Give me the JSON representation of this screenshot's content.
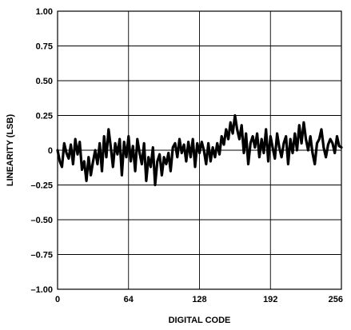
{
  "chart_data": {
    "type": "line",
    "title": "",
    "xlabel": "DIGITAL CODE",
    "ylabel": "LINEARITY (LSB)",
    "xlim": [
      0,
      256
    ],
    "ylim": [
      -1.0,
      1.0
    ],
    "x_ticks": [
      0,
      64,
      128,
      192,
      256
    ],
    "x_tick_labels": [
      "0",
      "64",
      "128",
      "192",
      "256"
    ],
    "y_ticks": [
      1.0,
      0.75,
      0.5,
      0.25,
      0,
      -0.25,
      -0.5,
      -0.75,
      -1.0
    ],
    "y_tick_labels": [
      "1.00",
      "0.75",
      "0.50",
      "0.25",
      "0",
      "–0.25",
      "–0.50",
      "–0.75",
      "–1.00"
    ],
    "grid": true,
    "line_color": "#000000",
    "series": [
      {
        "x": [
          0,
          2,
          4,
          6,
          8,
          10,
          12,
          14,
          16,
          18,
          20,
          22,
          24,
          26,
          28,
          30,
          32,
          34,
          36,
          38,
          40,
          42,
          44,
          46,
          48,
          50,
          52,
          54,
          56,
          58,
          60,
          62,
          64,
          66,
          68,
          70,
          72,
          74,
          76,
          78,
          80,
          82,
          84,
          86,
          88,
          90,
          92,
          94,
          96,
          98,
          100,
          102,
          104,
          106,
          108,
          110,
          112,
          114,
          116,
          118,
          120,
          122,
          124,
          126,
          128,
          130,
          132,
          134,
          136,
          138,
          140,
          142,
          144,
          146,
          148,
          150,
          152,
          154,
          156,
          158,
          160,
          162,
          164,
          166,
          168,
          170,
          172,
          174,
          176,
          178,
          180,
          182,
          184,
          186,
          188,
          190,
          192,
          194,
          196,
          198,
          200,
          202,
          204,
          206,
          208,
          210,
          212,
          214,
          216,
          218,
          220,
          222,
          224,
          226,
          228,
          230,
          232,
          234,
          236,
          238,
          240,
          242,
          244,
          246,
          248,
          250,
          252,
          254,
          256
        ],
        "values": [
          0.0,
          -0.08,
          -0.12,
          0.05,
          -0.02,
          -0.06,
          0.04,
          -0.1,
          0.08,
          -0.03,
          0.06,
          -0.14,
          -0.08,
          -0.22,
          -0.05,
          -0.18,
          -0.08,
          0.0,
          -0.1,
          0.05,
          -0.15,
          0.1,
          -0.05,
          0.15,
          0.02,
          -0.12,
          0.05,
          -0.03,
          0.08,
          -0.18,
          0.06,
          -0.05,
          0.1,
          -0.08,
          0.03,
          -0.15,
          0.08,
          -0.02,
          -0.1,
          0.05,
          -0.22,
          -0.05,
          -0.12,
          0.02,
          -0.25,
          -0.08,
          -0.03,
          -0.18,
          -0.05,
          -0.1,
          -0.02,
          -0.15,
          0.02,
          0.05,
          -0.05,
          0.08,
          -0.02,
          0.04,
          -0.08,
          0.06,
          -0.05,
          0.08,
          -0.12,
          0.05,
          -0.02,
          0.06,
          0.0,
          -0.1,
          0.05,
          -0.08,
          0.02,
          -0.05,
          0.05,
          -0.03,
          0.1,
          0.04,
          0.15,
          0.08,
          0.2,
          0.12,
          0.25,
          0.15,
          0.08,
          0.18,
          -0.02,
          0.12,
          -0.1,
          0.05,
          0.1,
          0.02,
          0.12,
          -0.05,
          0.08,
          -0.02,
          0.15,
          -0.08,
          0.1,
          0.02,
          -0.06,
          0.12,
          0.02,
          -0.05,
          0.05,
          0.1,
          -0.1,
          0.08,
          -0.02,
          0.12,
          0.0,
          0.18,
          0.05,
          0.2,
          0.08,
          0.0,
          0.1,
          -0.02,
          -0.1,
          0.05,
          0.08,
          0.15,
          0.02,
          -0.05,
          0.04,
          0.08,
          0.05,
          -0.02,
          0.1,
          0.03,
          0.02
        ]
      }
    ]
  }
}
